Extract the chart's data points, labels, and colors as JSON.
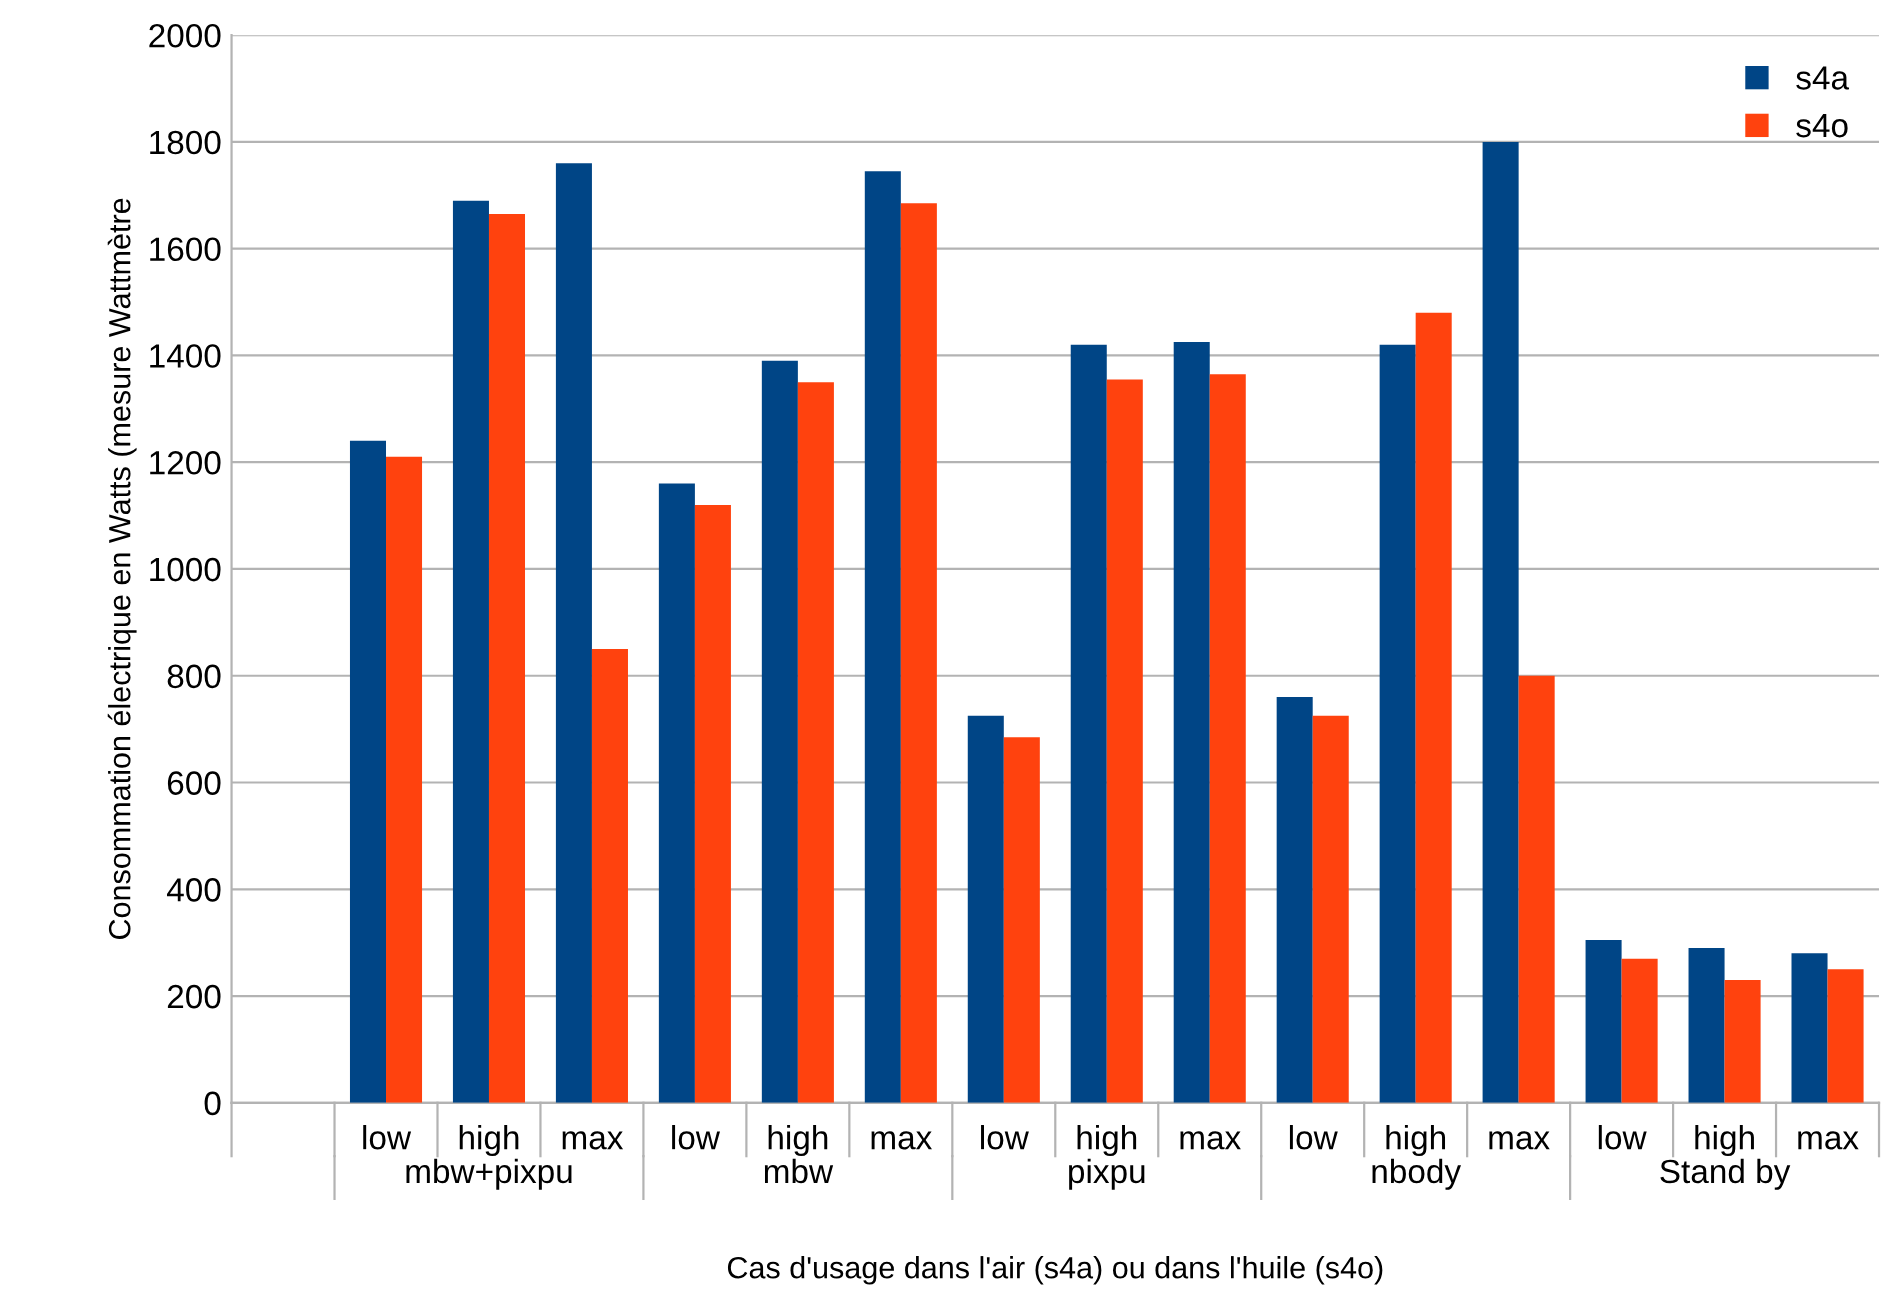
{
  "chart_data": {
    "type": "bar",
    "xlabel": "Cas d'usage dans l'air (s4a) ou dans l'huile (s4o)",
    "ylabel": "Consommation électrique en Watts (mesure Wattmètre",
    "categories": [
      null,
      "low",
      "high",
      "max",
      "low",
      "high",
      "max",
      "low",
      "high",
      "max",
      "low",
      "high",
      "max",
      "low",
      "high",
      "max"
    ],
    "annotations": [
      "mbw+pixpu",
      "mbw",
      "pixpu",
      "nbody",
      "Stand by"
    ],
    "series": [
      {
        "name": "s4a",
        "color": "#004586",
        "values": [
          null,
          1240,
          1690,
          1760,
          1160,
          1390,
          1745,
          725,
          1420,
          1425,
          760,
          1420,
          1800,
          305,
          290,
          280
        ]
      },
      {
        "name": "s4o",
        "color": "#ff420e",
        "values": [
          null,
          1210,
          1665,
          850,
          1120,
          1350,
          1685,
          685,
          1355,
          1365,
          725,
          1480,
          800,
          270,
          230,
          250
        ]
      }
    ],
    "ylim": [
      0,
      2000
    ],
    "yticks": [
      0,
      200,
      400,
      600,
      800,
      1000,
      1200,
      1400,
      1600,
      1800,
      2000
    ],
    "grid": "y",
    "legend": "top right"
  }
}
